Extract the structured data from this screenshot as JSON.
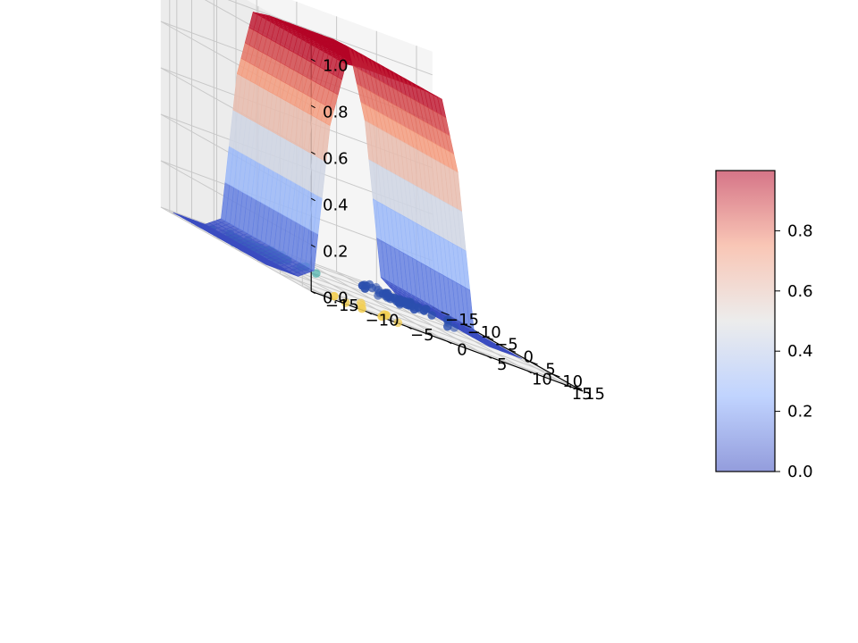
{
  "chart_data": {
    "type": "surface3d",
    "title": "",
    "xlabel": "",
    "ylabel": "",
    "zlabel": "",
    "x_ticks": [
      "−15",
      "−10",
      "−5",
      "0",
      "5",
      "10",
      "15"
    ],
    "y_ticks": [
      "−15",
      "−10",
      "−5",
      "0",
      "5",
      "10",
      "15"
    ],
    "z_ticks": [
      "0.0",
      "0.2",
      "0.4",
      "0.6",
      "0.8",
      "1.0"
    ],
    "xlim": [
      -17,
      17
    ],
    "ylim": [
      -17,
      17
    ],
    "zlim": [
      0,
      1.1
    ],
    "surface": {
      "colormap": "coolwarm",
      "description_values": {
        "low_plateau_z": 0.0,
        "high_plateau_z": 1.0
      },
      "profile": {
        "y_abs_values": [
          0,
          2,
          4,
          6,
          8,
          10,
          12,
          14,
          16
        ],
        "z_values": [
          1.0,
          1.0,
          1.0,
          0.99,
          0.7,
          0.05,
          0.0,
          0.0,
          0.0
        ]
      },
      "band_x_range": [
        -16,
        5
      ]
    },
    "scatter_series": [
      {
        "color": "#2b4fae",
        "cluster_center_x": -10,
        "cluster_center_y": 9,
        "count": 60
      },
      {
        "color": "#29a59c",
        "cluster_center_x": -10,
        "cluster_center_y": -8,
        "count": 70
      },
      {
        "color": "#f2cf55",
        "cluster_center_x": 14,
        "cluster_center_y": -9,
        "count": 10
      }
    ],
    "colorbar": {
      "ticks": [
        "0.0",
        "0.2",
        "0.4",
        "0.6",
        "0.8"
      ],
      "range": [
        0,
        1
      ],
      "colors": [
        "#3b4cc0",
        "#8db0fe",
        "#dddddd",
        "#f4987a",
        "#b40426"
      ]
    }
  }
}
